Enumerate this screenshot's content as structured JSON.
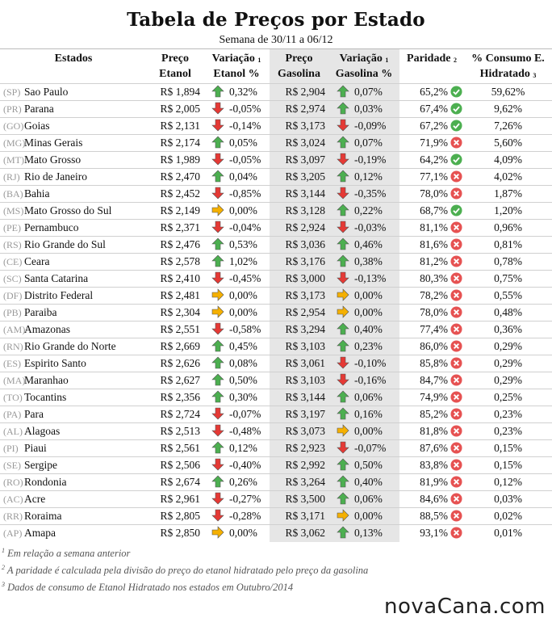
{
  "title": "Tabela de Preços por Estado",
  "subtitle": "Semana de 30/11 a 06/12",
  "headers": {
    "estados": "Estados",
    "preco_etanol_1": "Preço",
    "preco_etanol_2": "Etanol",
    "var_etanol_1": "Variação",
    "var_etanol_sup": "1",
    "var_etanol_2": "Etanol %",
    "preco_gasolina_1": "Preço",
    "preco_gasolina_2": "Gasolina",
    "var_gasolina_1": "Variação",
    "var_gasolina_sup": "1",
    "var_gasolina_2": "Gasolina %",
    "paridade": "Paridade",
    "paridade_sup": "2",
    "consumo_1": "% Consumo E.",
    "consumo_2": "Hidratado",
    "consumo_sup": "3"
  },
  "colors": {
    "up_arrow": "#4caf50",
    "down_arrow": "#e53935",
    "flat_arrow": "#f5b000",
    "check": "#4caf50",
    "cross": "#e65252"
  },
  "rows": [
    {
      "uf": "(SP)",
      "estado": "Sao Paulo",
      "etanol": "R$ 1,894",
      "var_etanol_dir": "up",
      "var_etanol": "0,32%",
      "gasolina": "R$ 2,904",
      "var_gasolina_dir": "up",
      "var_gasolina": "0,07%",
      "paridade": "65,2%",
      "paridade_ok": true,
      "consumo": "59,62%"
    },
    {
      "uf": "(PR)",
      "estado": "Parana",
      "etanol": "R$ 2,005",
      "var_etanol_dir": "down",
      "var_etanol": "-0,05%",
      "gasolina": "R$ 2,974",
      "var_gasolina_dir": "up",
      "var_gasolina": "0,03%",
      "paridade": "67,4%",
      "paridade_ok": true,
      "consumo": "9,62%"
    },
    {
      "uf": "(GO)",
      "estado": "Goias",
      "etanol": "R$ 2,131",
      "var_etanol_dir": "down",
      "var_etanol": "-0,14%",
      "gasolina": "R$ 3,173",
      "var_gasolina_dir": "down",
      "var_gasolina": "-0,09%",
      "paridade": "67,2%",
      "paridade_ok": true,
      "consumo": "7,26%"
    },
    {
      "uf": "(MG)",
      "estado": "Minas Gerais",
      "etanol": "R$ 2,174",
      "var_etanol_dir": "up",
      "var_etanol": "0,05%",
      "gasolina": "R$ 3,024",
      "var_gasolina_dir": "up",
      "var_gasolina": "0,07%",
      "paridade": "71,9%",
      "paridade_ok": false,
      "consumo": "5,60%"
    },
    {
      "uf": "(MT)",
      "estado": "Mato Grosso",
      "etanol": "R$ 1,989",
      "var_etanol_dir": "down",
      "var_etanol": "-0,05%",
      "gasolina": "R$ 3,097",
      "var_gasolina_dir": "down",
      "var_gasolina": "-0,19%",
      "paridade": "64,2%",
      "paridade_ok": true,
      "consumo": "4,09%"
    },
    {
      "uf": "(RJ)",
      "estado": "Rio de Janeiro",
      "etanol": "R$ 2,470",
      "var_etanol_dir": "up",
      "var_etanol": "0,04%",
      "gasolina": "R$ 3,205",
      "var_gasolina_dir": "up",
      "var_gasolina": "0,12%",
      "paridade": "77,1%",
      "paridade_ok": false,
      "consumo": "4,02%"
    },
    {
      "uf": "(BA)",
      "estado": "Bahia",
      "etanol": "R$ 2,452",
      "var_etanol_dir": "down",
      "var_etanol": "-0,85%",
      "gasolina": "R$ 3,144",
      "var_gasolina_dir": "down",
      "var_gasolina": "-0,35%",
      "paridade": "78,0%",
      "paridade_ok": false,
      "consumo": "1,87%"
    },
    {
      "uf": "(MS)",
      "estado": "Mato Grosso do Sul",
      "etanol": "R$ 2,149",
      "var_etanol_dir": "flat",
      "var_etanol": "0,00%",
      "gasolina": "R$ 3,128",
      "var_gasolina_dir": "up",
      "var_gasolina": "0,22%",
      "paridade": "68,7%",
      "paridade_ok": true,
      "consumo": "1,20%"
    },
    {
      "uf": "(PE)",
      "estado": "Pernambuco",
      "etanol": "R$ 2,371",
      "var_etanol_dir": "down",
      "var_etanol": "-0,04%",
      "gasolina": "R$ 2,924",
      "var_gasolina_dir": "down",
      "var_gasolina": "-0,03%",
      "paridade": "81,1%",
      "paridade_ok": false,
      "consumo": "0,96%"
    },
    {
      "uf": "(RS)",
      "estado": "Rio Grande do Sul",
      "etanol": "R$ 2,476",
      "var_etanol_dir": "up",
      "var_etanol": "0,53%",
      "gasolina": "R$ 3,036",
      "var_gasolina_dir": "up",
      "var_gasolina": "0,46%",
      "paridade": "81,6%",
      "paridade_ok": false,
      "consumo": "0,81%"
    },
    {
      "uf": "(CE)",
      "estado": "Ceara",
      "etanol": "R$ 2,578",
      "var_etanol_dir": "up",
      "var_etanol": "1,02%",
      "gasolina": "R$ 3,176",
      "var_gasolina_dir": "up",
      "var_gasolina": "0,38%",
      "paridade": "81,2%",
      "paridade_ok": false,
      "consumo": "0,78%"
    },
    {
      "uf": "(SC)",
      "estado": "Santa Catarina",
      "etanol": "R$ 2,410",
      "var_etanol_dir": "down",
      "var_etanol": "-0,45%",
      "gasolina": "R$ 3,000",
      "var_gasolina_dir": "down",
      "var_gasolina": "-0,13%",
      "paridade": "80,3%",
      "paridade_ok": false,
      "consumo": "0,75%"
    },
    {
      "uf": "(DF)",
      "estado": "Distrito Federal",
      "etanol": "R$ 2,481",
      "var_etanol_dir": "flat",
      "var_etanol": "0,00%",
      "gasolina": "R$ 3,173",
      "var_gasolina_dir": "flat",
      "var_gasolina": "0,00%",
      "paridade": "78,2%",
      "paridade_ok": false,
      "consumo": "0,55%"
    },
    {
      "uf": "(PB)",
      "estado": "Paraiba",
      "etanol": "R$ 2,304",
      "var_etanol_dir": "flat",
      "var_etanol": "0,00%",
      "gasolina": "R$ 2,954",
      "var_gasolina_dir": "flat",
      "var_gasolina": "0,00%",
      "paridade": "78,0%",
      "paridade_ok": false,
      "consumo": "0,48%"
    },
    {
      "uf": "(AM)",
      "estado": "Amazonas",
      "etanol": "R$ 2,551",
      "var_etanol_dir": "down",
      "var_etanol": "-0,58%",
      "gasolina": "R$ 3,294",
      "var_gasolina_dir": "up",
      "var_gasolina": "0,40%",
      "paridade": "77,4%",
      "paridade_ok": false,
      "consumo": "0,36%"
    },
    {
      "uf": "(RN)",
      "estado": "Rio Grande do Norte",
      "etanol": "R$ 2,669",
      "var_etanol_dir": "up",
      "var_etanol": "0,45%",
      "gasolina": "R$ 3,103",
      "var_gasolina_dir": "up",
      "var_gasolina": "0,23%",
      "paridade": "86,0%",
      "paridade_ok": false,
      "consumo": "0,29%"
    },
    {
      "uf": "(ES)",
      "estado": "Espirito Santo",
      "etanol": "R$ 2,626",
      "var_etanol_dir": "up",
      "var_etanol": "0,08%",
      "gasolina": "R$ 3,061",
      "var_gasolina_dir": "down",
      "var_gasolina": "-0,10%",
      "paridade": "85,8%",
      "paridade_ok": false,
      "consumo": "0,29%"
    },
    {
      "uf": "(MA)",
      "estado": "Maranhao",
      "etanol": "R$ 2,627",
      "var_etanol_dir": "up",
      "var_etanol": "0,50%",
      "gasolina": "R$ 3,103",
      "var_gasolina_dir": "down",
      "var_gasolina": "-0,16%",
      "paridade": "84,7%",
      "paridade_ok": false,
      "consumo": "0,29%"
    },
    {
      "uf": "(TO)",
      "estado": "Tocantins",
      "etanol": "R$ 2,356",
      "var_etanol_dir": "up",
      "var_etanol": "0,30%",
      "gasolina": "R$ 3,144",
      "var_gasolina_dir": "up",
      "var_gasolina": "0,06%",
      "paridade": "74,9%",
      "paridade_ok": false,
      "consumo": "0,25%"
    },
    {
      "uf": "(PA)",
      "estado": "Para",
      "etanol": "R$ 2,724",
      "var_etanol_dir": "down",
      "var_etanol": "-0,07%",
      "gasolina": "R$ 3,197",
      "var_gasolina_dir": "up",
      "var_gasolina": "0,16%",
      "paridade": "85,2%",
      "paridade_ok": false,
      "consumo": "0,23%"
    },
    {
      "uf": "(AL)",
      "estado": "Alagoas",
      "etanol": "R$ 2,513",
      "var_etanol_dir": "down",
      "var_etanol": "-0,48%",
      "gasolina": "R$ 3,073",
      "var_gasolina_dir": "flat",
      "var_gasolina": "0,00%",
      "paridade": "81,8%",
      "paridade_ok": false,
      "consumo": "0,23%"
    },
    {
      "uf": "(PI)",
      "estado": "Piaui",
      "etanol": "R$ 2,561",
      "var_etanol_dir": "up",
      "var_etanol": "0,12%",
      "gasolina": "R$ 2,923",
      "var_gasolina_dir": "down",
      "var_gasolina": "-0,07%",
      "paridade": "87,6%",
      "paridade_ok": false,
      "consumo": "0,15%"
    },
    {
      "uf": "(SE)",
      "estado": "Sergipe",
      "etanol": "R$ 2,506",
      "var_etanol_dir": "down",
      "var_etanol": "-0,40%",
      "gasolina": "R$ 2,992",
      "var_gasolina_dir": "up",
      "var_gasolina": "0,50%",
      "paridade": "83,8%",
      "paridade_ok": false,
      "consumo": "0,15%"
    },
    {
      "uf": "(RO)",
      "estado": "Rondonia",
      "etanol": "R$ 2,674",
      "var_etanol_dir": "up",
      "var_etanol": "0,26%",
      "gasolina": "R$ 3,264",
      "var_gasolina_dir": "up",
      "var_gasolina": "0,40%",
      "paridade": "81,9%",
      "paridade_ok": false,
      "consumo": "0,12%"
    },
    {
      "uf": "(AC)",
      "estado": "Acre",
      "etanol": "R$ 2,961",
      "var_etanol_dir": "down",
      "var_etanol": "-0,27%",
      "gasolina": "R$ 3,500",
      "var_gasolina_dir": "up",
      "var_gasolina": "0,06%",
      "paridade": "84,6%",
      "paridade_ok": false,
      "consumo": "0,03%"
    },
    {
      "uf": "(RR)",
      "estado": "Roraima",
      "etanol": "R$ 2,805",
      "var_etanol_dir": "down",
      "var_etanol": "-0,28%",
      "gasolina": "R$ 3,171",
      "var_gasolina_dir": "flat",
      "var_gasolina": "0,00%",
      "paridade": "88,5%",
      "paridade_ok": false,
      "consumo": "0,02%"
    },
    {
      "uf": "(AP)",
      "estado": "Amapa",
      "etanol": "R$ 2,850",
      "var_etanol_dir": "flat",
      "var_etanol": "0,00%",
      "gasolina": "R$ 3,062",
      "var_gasolina_dir": "up",
      "var_gasolina": "0,13%",
      "paridade": "93,1%",
      "paridade_ok": false,
      "consumo": "0,01%"
    }
  ],
  "footnotes": [
    {
      "sup": "1",
      "text": "Em relação a semana anterior"
    },
    {
      "sup": "2",
      "text": "A paridade é calculada pela divisão do preço do etanol hidratado pelo preço da gasolina"
    },
    {
      "sup": "3",
      "text": "Dados de consumo de Etanol Hidratado nos estados em Outubro/2014"
    }
  ],
  "logo": "novaCana.com"
}
